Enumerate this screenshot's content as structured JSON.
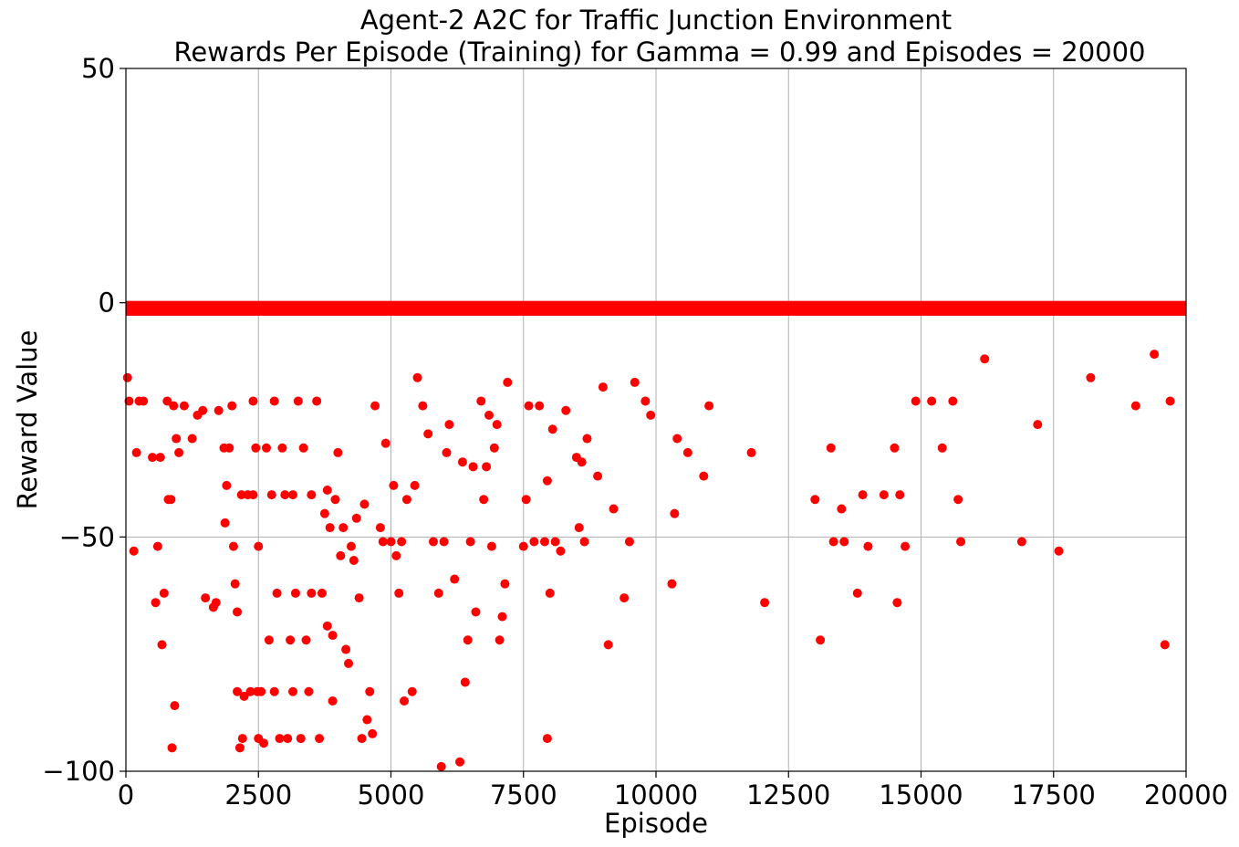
{
  "chart_data": {
    "type": "scatter",
    "title": "Agent-2 A2C for Traffic Junction Environment",
    "subtitle": "Rewards Per Episode (Training) for Gamma = 0.99 and Episodes = 20000",
    "xlabel": "Episode",
    "ylabel": "Reward Value",
    "xlim": [
      0,
      20000
    ],
    "ylim": [
      -100,
      50
    ],
    "xticks": [
      0,
      2500,
      5000,
      7500,
      10000,
      12500,
      15000,
      17500,
      20000
    ],
    "xtick_labels": [
      "0",
      "2500",
      "5000",
      "7500",
      "10000",
      "12500",
      "15000",
      "17500",
      "20000"
    ],
    "yticks": [
      -100,
      -50,
      0,
      50
    ],
    "ytick_labels": [
      "−100",
      "−50",
      "0",
      "50"
    ],
    "grid": true,
    "marker_color": "#ff0000",
    "series": [
      {
        "points": [
          [
            30,
            -16
          ],
          [
            60,
            -21
          ],
          [
            150,
            -53
          ],
          [
            200,
            -32
          ],
          [
            250,
            -21
          ],
          [
            330,
            -21
          ],
          [
            500,
            -33
          ],
          [
            560,
            -64
          ],
          [
            600,
            -52
          ],
          [
            650,
            -33
          ],
          [
            680,
            -73
          ],
          [
            720,
            -62
          ],
          [
            780,
            -21
          ],
          [
            800,
            -42
          ],
          [
            850,
            -42
          ],
          [
            870,
            -95
          ],
          [
            900,
            -22
          ],
          [
            920,
            -86
          ],
          [
            950,
            -29
          ],
          [
            1000,
            -32
          ],
          [
            1100,
            -22
          ],
          [
            1250,
            -29
          ],
          [
            1350,
            -24
          ],
          [
            1450,
            -23
          ],
          [
            1500,
            -63
          ],
          [
            1650,
            -65
          ],
          [
            1700,
            -64
          ],
          [
            1750,
            -23
          ],
          [
            1850,
            -31
          ],
          [
            1870,
            -47
          ],
          [
            1900,
            -39
          ],
          [
            1950,
            -31
          ],
          [
            2000,
            -22
          ],
          [
            2030,
            -52
          ],
          [
            2060,
            -60
          ],
          [
            2100,
            -66
          ],
          [
            2100,
            -83
          ],
          [
            2150,
            -95
          ],
          [
            2180,
            -41
          ],
          [
            2200,
            -93
          ],
          [
            2230,
            -84
          ],
          [
            2300,
            -41
          ],
          [
            2350,
            -83
          ],
          [
            2400,
            -21
          ],
          [
            2400,
            -41
          ],
          [
            2450,
            -31
          ],
          [
            2480,
            -83
          ],
          [
            2500,
            -52
          ],
          [
            2500,
            -93
          ],
          [
            2550,
            -83
          ],
          [
            2600,
            -94
          ],
          [
            2650,
            -31
          ],
          [
            2700,
            -72
          ],
          [
            2750,
            -41
          ],
          [
            2800,
            -21
          ],
          [
            2800,
            -83
          ],
          [
            2850,
            -62
          ],
          [
            2900,
            -93
          ],
          [
            2950,
            -31
          ],
          [
            3000,
            -41
          ],
          [
            3050,
            -93
          ],
          [
            3100,
            -72
          ],
          [
            3150,
            -83
          ],
          [
            3150,
            -41
          ],
          [
            3200,
            -62
          ],
          [
            3250,
            -21
          ],
          [
            3300,
            -93
          ],
          [
            3350,
            -31
          ],
          [
            3400,
            -72
          ],
          [
            3450,
            -83
          ],
          [
            3500,
            -62
          ],
          [
            3500,
            -41
          ],
          [
            3600,
            -21
          ],
          [
            3650,
            -93
          ],
          [
            3700,
            -62
          ],
          [
            3750,
            -45
          ],
          [
            3800,
            -69
          ],
          [
            3800,
            -40
          ],
          [
            3850,
            -48
          ],
          [
            3900,
            -85
          ],
          [
            3900,
            -71
          ],
          [
            3950,
            -42
          ],
          [
            4000,
            -32
          ],
          [
            4050,
            -54
          ],
          [
            4100,
            -48
          ],
          [
            4150,
            -74
          ],
          [
            4200,
            -77
          ],
          [
            4250,
            -52
          ],
          [
            4300,
            -55
          ],
          [
            4350,
            -46
          ],
          [
            4400,
            -63
          ],
          [
            4450,
            -93
          ],
          [
            4500,
            -43
          ],
          [
            4550,
            -89
          ],
          [
            4600,
            -83
          ],
          [
            4650,
            -92
          ],
          [
            4700,
            -22
          ],
          [
            4800,
            -48
          ],
          [
            4850,
            -51
          ],
          [
            4900,
            -30
          ],
          [
            5000,
            -51
          ],
          [
            5050,
            -39
          ],
          [
            5100,
            -54
          ],
          [
            5150,
            -62
          ],
          [
            5200,
            -51
          ],
          [
            5250,
            -85
          ],
          [
            5300,
            -42
          ],
          [
            5400,
            -83
          ],
          [
            5450,
            -39
          ],
          [
            5500,
            -16
          ],
          [
            5600,
            -22
          ],
          [
            5700,
            -28
          ],
          [
            5800,
            -51
          ],
          [
            5900,
            -62
          ],
          [
            5950,
            -99
          ],
          [
            6000,
            -51
          ],
          [
            6050,
            -32
          ],
          [
            6100,
            -26
          ],
          [
            6200,
            -59
          ],
          [
            6300,
            -98
          ],
          [
            6350,
            -34
          ],
          [
            6400,
            -81
          ],
          [
            6450,
            -72
          ],
          [
            6500,
            -51
          ],
          [
            6550,
            -35
          ],
          [
            6600,
            -66
          ],
          [
            6700,
            -21
          ],
          [
            6750,
            -42
          ],
          [
            6800,
            -35
          ],
          [
            6850,
            -24
          ],
          [
            6900,
            -52
          ],
          [
            6950,
            -31
          ],
          [
            7000,
            -26
          ],
          [
            7050,
            -72
          ],
          [
            7100,
            -67
          ],
          [
            7150,
            -60
          ],
          [
            7200,
            -17
          ],
          [
            7500,
            -52
          ],
          [
            7550,
            -42
          ],
          [
            7600,
            -22
          ],
          [
            7700,
            -51
          ],
          [
            7800,
            -22
          ],
          [
            7900,
            -51
          ],
          [
            7950,
            -38
          ],
          [
            7950,
            -93
          ],
          [
            8000,
            -62
          ],
          [
            8050,
            -27
          ],
          [
            8100,
            -51
          ],
          [
            8200,
            -53
          ],
          [
            8300,
            -23
          ],
          [
            8500,
            -33
          ],
          [
            8550,
            -48
          ],
          [
            8600,
            -34
          ],
          [
            8650,
            -51
          ],
          [
            8700,
            -29
          ],
          [
            8900,
            -37
          ],
          [
            9000,
            -18
          ],
          [
            9100,
            -73
          ],
          [
            9200,
            -44
          ],
          [
            9400,
            -63
          ],
          [
            9500,
            -51
          ],
          [
            9600,
            -17
          ],
          [
            9800,
            -21
          ],
          [
            9900,
            -24
          ],
          [
            10300,
            -60
          ],
          [
            10350,
            -45
          ],
          [
            10400,
            -29
          ],
          [
            10600,
            -32
          ],
          [
            10900,
            -37
          ],
          [
            11000,
            -22
          ],
          [
            11800,
            -32
          ],
          [
            12050,
            -64
          ],
          [
            13000,
            -42
          ],
          [
            13100,
            -72
          ],
          [
            13300,
            -31
          ],
          [
            13350,
            -51
          ],
          [
            13500,
            -44
          ],
          [
            13550,
            -51
          ],
          [
            13800,
            -62
          ],
          [
            13900,
            -41
          ],
          [
            14000,
            -52
          ],
          [
            14300,
            -41
          ],
          [
            14500,
            -31
          ],
          [
            14550,
            -64
          ],
          [
            14600,
            -41
          ],
          [
            14700,
            -52
          ],
          [
            14900,
            -21
          ],
          [
            15200,
            -21
          ],
          [
            15400,
            -31
          ],
          [
            15600,
            -21
          ],
          [
            15700,
            -42
          ],
          [
            15750,
            -51
          ],
          [
            16200,
            -12
          ],
          [
            17200,
            -26
          ],
          [
            16900,
            -51
          ],
          [
            17600,
            -53
          ],
          [
            18200,
            -16
          ],
          [
            19050,
            -22
          ],
          [
            19600,
            -73
          ],
          [
            19700,
            -21
          ],
          [
            19400,
            -11
          ]
        ]
      }
    ]
  }
}
